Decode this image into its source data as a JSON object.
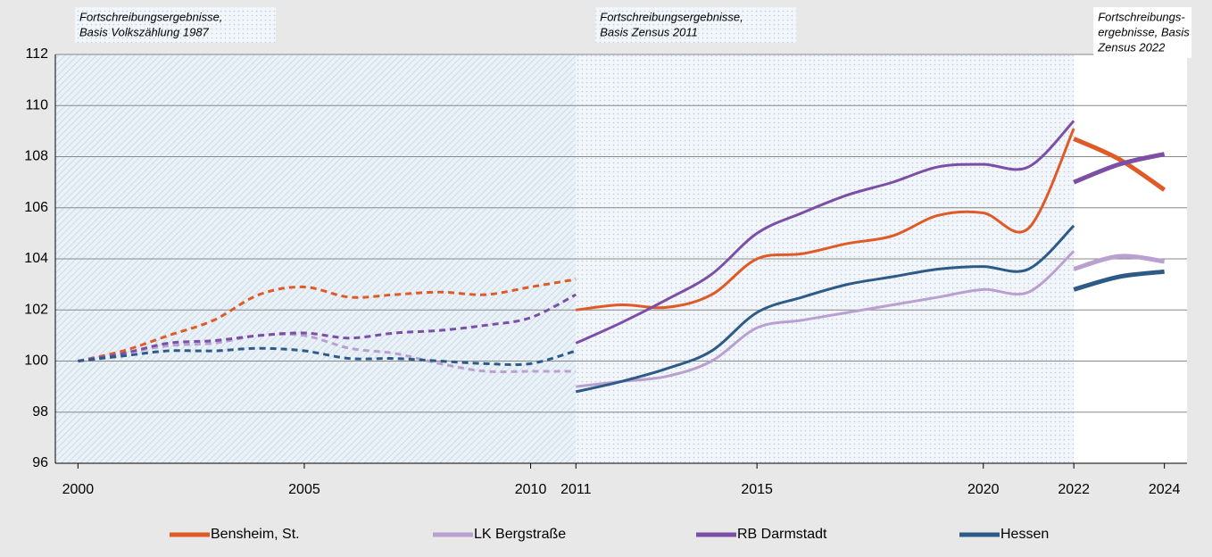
{
  "chart_data": {
    "type": "line",
    "xlim": [
      1999.5,
      2024.5
    ],
    "ylim": [
      96,
      112
    ],
    "yticks": [
      96,
      98,
      100,
      102,
      104,
      106,
      108,
      110,
      112
    ],
    "xticks": [
      2000,
      2005,
      2010,
      2011,
      2015,
      2020,
      2022,
      2024
    ],
    "grid": true,
    "periods": [
      {
        "lines": [
          "Fortschreibungsergebnisse,",
          "Basis Volkszählung 1987"
        ],
        "x": [
          2000,
          2001,
          2002,
          2003,
          2004,
          2005,
          2006,
          2007,
          2008,
          2009,
          2010,
          2011
        ],
        "style": "dashed",
        "background": "hatch"
      },
      {
        "lines": [
          "Fortschreibungsergebnisse,",
          "Basis Zensus 2011"
        ],
        "x": [
          2011,
          2012,
          2013,
          2014,
          2015,
          2016,
          2017,
          2018,
          2019,
          2020,
          2021,
          2022
        ],
        "style": "solid",
        "background": "dots"
      },
      {
        "lines": [
          "Fortschreibungs-",
          "ergebnisse, Basis",
          "Zensus 2022"
        ],
        "x": [
          2022,
          2023,
          2024
        ],
        "style": "thick",
        "background": "none"
      }
    ],
    "series": [
      {
        "name": "Bensheim, St.",
        "color": "#e05a28",
        "values": [
          [
            100,
            100.4,
            101.0,
            101.6,
            102.6,
            102.9,
            102.5,
            102.6,
            102.7,
            102.6,
            102.9,
            103.2
          ],
          [
            102.0,
            102.2,
            102.1,
            102.6,
            104.0,
            104.2,
            104.6,
            104.9,
            105.7,
            105.8,
            105.2,
            109.1
          ],
          [
            108.7,
            107.9,
            106.7
          ]
        ]
      },
      {
        "name": "LK Bergstraße",
        "color": "#b9a0d0",
        "values": [
          [
            100,
            100.3,
            100.6,
            100.7,
            101.0,
            101.0,
            100.5,
            100.3,
            99.9,
            99.6,
            99.6,
            99.6
          ],
          [
            99.0,
            99.2,
            99.4,
            100.0,
            101.3,
            101.6,
            101.9,
            102.2,
            102.5,
            102.8,
            102.7,
            104.3
          ],
          [
            103.6,
            104.1,
            103.9
          ]
        ]
      },
      {
        "name": "RB Darmstadt",
        "color": "#7b4fa6",
        "values": [
          [
            100,
            100.3,
            100.7,
            100.8,
            101.0,
            101.1,
            100.9,
            101.1,
            101.2,
            101.4,
            101.7,
            102.6
          ],
          [
            100.7,
            101.5,
            102.4,
            103.4,
            105.0,
            105.8,
            106.5,
            107.0,
            107.6,
            107.7,
            107.6,
            109.4
          ],
          [
            107.0,
            107.7,
            108.1
          ]
        ]
      },
      {
        "name": "Hessen",
        "color": "#2e5a87",
        "values": [
          [
            100,
            100.2,
            100.4,
            100.4,
            100.5,
            100.4,
            100.1,
            100.1,
            100.0,
            99.9,
            99.9,
            100.4
          ],
          [
            98.8,
            99.2,
            99.7,
            100.4,
            101.9,
            102.5,
            103.0,
            103.3,
            103.6,
            103.7,
            103.6,
            105.3
          ],
          [
            102.8,
            103.3,
            103.5
          ]
        ]
      }
    ]
  }
}
